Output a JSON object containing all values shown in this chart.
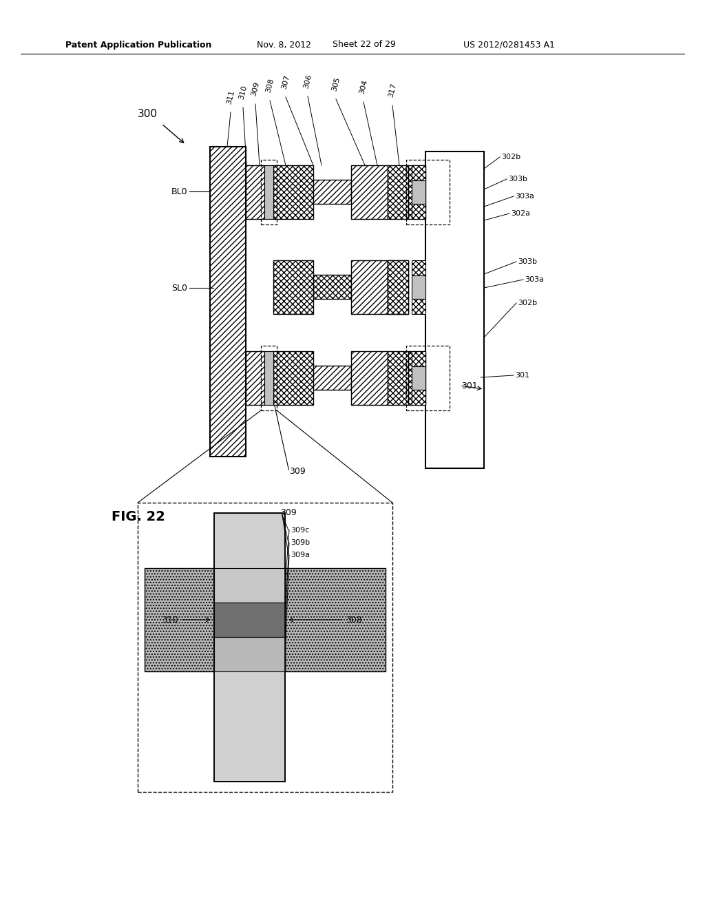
{
  "header_left": "Patent Application Publication",
  "header_mid": "Nov. 8, 2012",
  "header_sheet": "Sheet 22 of 29",
  "header_right": "US 2012/0281453 A1",
  "fig_label": "FIG. 22",
  "bg": "#ffffff"
}
